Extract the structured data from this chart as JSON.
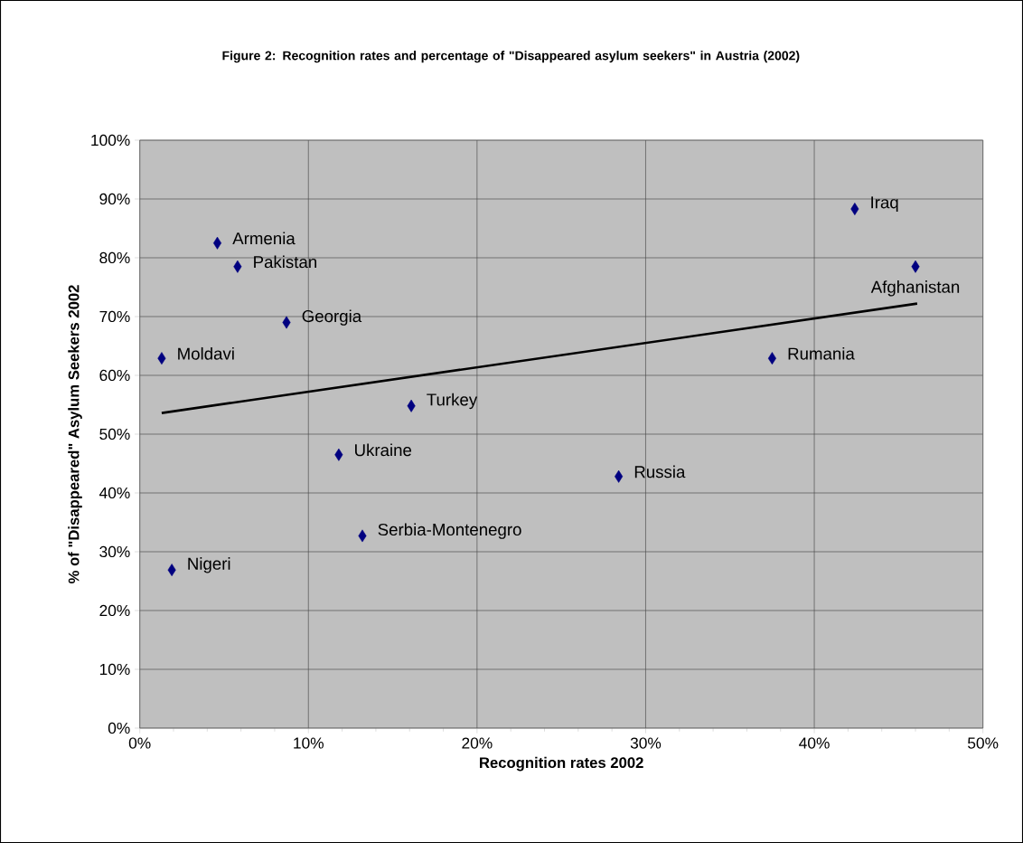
{
  "chart_data": {
    "type": "scatter",
    "title": "Figure 2: Recognition rates and percentage of \"Disappeared asylum seekers\" in Austria (2002)",
    "xlabel": "Recognition rates 2002",
    "ylabel": "% of \"Disappeared\" Asylum Seekers 2002",
    "xlim": [
      0,
      50
    ],
    "ylim": [
      0,
      100
    ],
    "xticks": [
      {
        "value": 0,
        "label": "0%"
      },
      {
        "value": 10,
        "label": "10%"
      },
      {
        "value": 20,
        "label": "20%"
      },
      {
        "value": 30,
        "label": "30%"
      },
      {
        "value": 40,
        "label": "40%"
      },
      {
        "value": 50,
        "label": "50%"
      }
    ],
    "yticks": [
      {
        "value": 0,
        "label": "0%"
      },
      {
        "value": 10,
        "label": "10%"
      },
      {
        "value": 20,
        "label": "20%"
      },
      {
        "value": 30,
        "label": "30%"
      },
      {
        "value": 40,
        "label": "40%"
      },
      {
        "value": 50,
        "label": "50%"
      },
      {
        "value": 60,
        "label": "60%"
      },
      {
        "value": 70,
        "label": "70%"
      },
      {
        "value": 80,
        "label": "80%"
      },
      {
        "value": 90,
        "label": "90%"
      },
      {
        "value": 100,
        "label": "100%"
      }
    ],
    "grid": true,
    "series": [
      {
        "marker": "diamond",
        "color": "#000080",
        "x": [
          4.6,
          5.8,
          8.7,
          1.3,
          1.9,
          16.1,
          11.8,
          13.2,
          42.4,
          46.0,
          37.5,
          28.4
        ],
        "values": [
          82.5,
          78.5,
          69.0,
          62.9,
          26.9,
          54.8,
          46.5,
          32.7,
          88.3,
          78.5,
          62.9,
          42.8
        ]
      },
      {
        "type": "line",
        "color": "#000000",
        "x": [
          1.3,
          46.1
        ],
        "values": [
          53.6,
          72.2
        ]
      }
    ],
    "annotations": [
      {
        "text": "Armenia",
        "x": 4.6,
        "y": 82.5
      },
      {
        "text": "Pakistan",
        "x": 5.8,
        "y": 78.5
      },
      {
        "text": "Georgia",
        "x": 8.7,
        "y": 69.0
      },
      {
        "text": "Moldavi",
        "x": 1.3,
        "y": 62.9
      },
      {
        "text": "Nigeri",
        "x": 1.9,
        "y": 26.9
      },
      {
        "text": "Turkey",
        "x": 16.1,
        "y": 54.8
      },
      {
        "text": "Ukraine",
        "x": 11.8,
        "y": 46.5
      },
      {
        "text": "Serbia-Montenegro",
        "x": 13.2,
        "y": 32.7
      },
      {
        "text": "Iraq",
        "x": 42.4,
        "y": 88.3
      },
      {
        "text": "Afghanistan",
        "x": 46.0,
        "y": 78.5
      },
      {
        "text": "Rumania",
        "x": 37.5,
        "y": 62.9
      },
      {
        "text": "Russia",
        "x": 28.4,
        "y": 42.8
      }
    ]
  }
}
